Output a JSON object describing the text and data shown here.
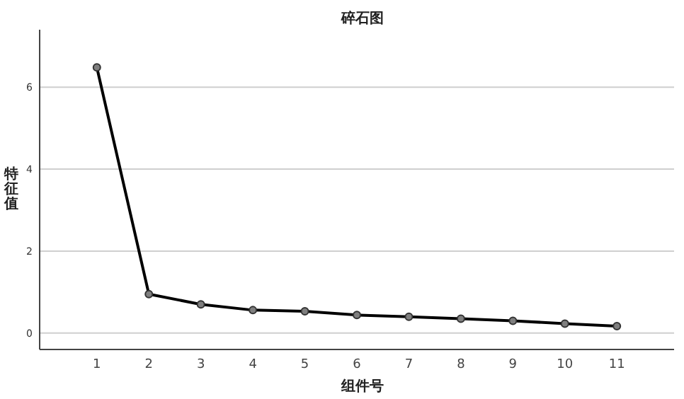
{
  "chart_data": {
    "type": "line",
    "title": "碎石图",
    "xlabel": "组件号",
    "ylabel": "特征值",
    "x": [
      1,
      2,
      3,
      4,
      5,
      6,
      7,
      8,
      9,
      10,
      11
    ],
    "series": [
      {
        "color": "#000000",
        "values": [
          6.48,
          0.95,
          0.7,
          0.56,
          0.53,
          0.44,
          0.4,
          0.35,
          0.3,
          0.23,
          0.17
        ]
      }
    ],
    "xlim": [
      -0.1,
      12.1
    ],
    "xticks": [
      1,
      2,
      3,
      4,
      5,
      6,
      7,
      8,
      9,
      10,
      11
    ],
    "ylim": [
      -0.4,
      7.4
    ],
    "yticks": [
      0,
      2,
      4,
      6
    ],
    "grid": "y",
    "marker": "circle",
    "line_style": "solid"
  }
}
